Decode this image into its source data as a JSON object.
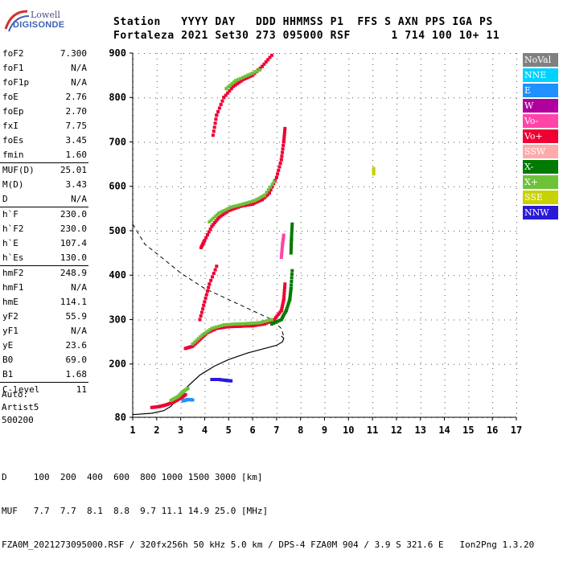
{
  "logo": {
    "line1": "Lowell",
    "line2": "DIGISONDE"
  },
  "header": {
    "line1": "Station   YYYY DAY   DDD HHMMSS P1  FFS S AXN PPS IGA PS",
    "line2": "Fortaleza 2021 Set30 273 095000 RSF      1 714 100 10+ 11"
  },
  "params": [
    {
      "label": "foF2",
      "value": "7.300"
    },
    {
      "label": "foF1",
      "value": "N/A"
    },
    {
      "label": "foF1p",
      "value": "N/A"
    },
    {
      "label": "foE",
      "value": "2.76"
    },
    {
      "label": "foEp",
      "value": "2.70"
    },
    {
      "label": "fxI",
      "value": "7.75"
    },
    {
      "label": "foEs",
      "value": "3.45"
    },
    {
      "label": "fmin",
      "value": "1.60"
    },
    {
      "label": "MUF(D)",
      "value": "25.01",
      "sep": true
    },
    {
      "label": "M(D)",
      "value": "3.43"
    },
    {
      "label": "D",
      "value": "N/A"
    },
    {
      "label": "h`F",
      "value": "230.0",
      "sep": true
    },
    {
      "label": "h`F2",
      "value": "230.0"
    },
    {
      "label": "h`E",
      "value": "107.4"
    },
    {
      "label": "h`Es",
      "value": "130.0"
    },
    {
      "label": "hmF2",
      "value": "248.9",
      "sep": true
    },
    {
      "label": "hmF1",
      "value": "N/A"
    },
    {
      "label": "hmE",
      "value": "114.1"
    },
    {
      "label": "yF2",
      "value": "55.9"
    },
    {
      "label": "yF1",
      "value": "N/A"
    },
    {
      "label": "yE",
      "value": "23.6"
    },
    {
      "label": "B0",
      "value": "69.0"
    },
    {
      "label": "B1",
      "value": "1.68"
    },
    {
      "label": "C-level",
      "value": "11",
      "sep": true
    }
  ],
  "extra": {
    "auto": "Auto:",
    "artist": "Artist5",
    "code": "500200"
  },
  "legend": [
    {
      "label": "NoVal",
      "color": "#808080"
    },
    {
      "label": "NNE",
      "color": "#00d2ff"
    },
    {
      "label": "E",
      "color": "#1e90ff"
    },
    {
      "label": "W",
      "color": "#b0009e"
    },
    {
      "label": "Vo-",
      "color": "#ff44aa"
    },
    {
      "label": "Vo+",
      "color": "#ee0033"
    },
    {
      "label": "SSW",
      "color": "#ffaaaa"
    },
    {
      "label": "X-",
      "color": "#007a00"
    },
    {
      "label": "X+",
      "color": "#6ec23a"
    },
    {
      "label": "SSE",
      "color": "#c8d200"
    },
    {
      "label": "NNW",
      "color": "#2a1ad8"
    }
  ],
  "footer": {
    "line1": "D     100  200  400  600  800 1000 1500 3000 [km]",
    "line2": "MUF   7.7  7.7  8.1  8.8  9.7 11.1 14.9 25.0 [MHz]",
    "line3": "FZA0M_2021273095000.RSF / 320fx256h 50 kHz 5.0 km / DPS-4 FZA0M 904 / 3.9 S 321.6 E   Ion2Png 1.3.20"
  },
  "chart_data": {
    "type": "scatter",
    "xlim": [
      1,
      17
    ],
    "ylim": [
      80,
      900
    ],
    "x_ticks": [
      1,
      2,
      3,
      4,
      5,
      6,
      7,
      8,
      9,
      10,
      11,
      12,
      13,
      14,
      15,
      16,
      17
    ],
    "y_ticks": [
      80,
      200,
      300,
      400,
      500,
      600,
      700,
      800,
      900
    ],
    "grid": true,
    "profile_solid": [
      [
        1.0,
        86
      ],
      [
        1.8,
        89
      ],
      [
        2.3,
        95
      ],
      [
        2.6,
        105
      ],
      [
        2.9,
        125
      ],
      [
        3.3,
        150
      ],
      [
        3.8,
        175
      ],
      [
        4.4,
        195
      ],
      [
        5.0,
        210
      ],
      [
        5.8,
        225
      ],
      [
        6.5,
        235
      ],
      [
        7.0,
        242
      ],
      [
        7.25,
        250
      ],
      [
        7.3,
        258
      ],
      [
        7.2,
        263
      ]
    ],
    "profile_dashed": [
      [
        1.0,
        515
      ],
      [
        1.5,
        470
      ],
      [
        2.2,
        440
      ],
      [
        3.0,
        405
      ],
      [
        4.0,
        370
      ],
      [
        5.0,
        345
      ],
      [
        6.0,
        320
      ],
      [
        6.8,
        300
      ],
      [
        7.2,
        280
      ],
      [
        7.3,
        262
      ]
    ],
    "echo_traces": [
      {
        "color": "#ee0033",
        "points": [
          [
            1.8,
            102
          ],
          [
            2.1,
            104
          ],
          [
            2.4,
            108
          ],
          [
            2.7,
            114
          ],
          [
            3.0,
            123
          ],
          [
            3.2,
            131
          ]
        ]
      },
      {
        "color": "#6ec23a",
        "points": [
          [
            2.6,
            118
          ],
          [
            2.9,
            127
          ],
          [
            3.1,
            138
          ],
          [
            3.3,
            145
          ]
        ]
      },
      {
        "color": "#1e90ff",
        "points": [
          [
            3.1,
            117
          ],
          [
            3.3,
            120
          ],
          [
            3.5,
            119
          ]
        ]
      },
      {
        "color": "#ee0033",
        "points": [
          [
            3.2,
            235
          ],
          [
            3.5,
            240
          ],
          [
            3.8,
            255
          ],
          [
            4.1,
            270
          ],
          [
            4.5,
            280
          ],
          [
            5.0,
            284
          ],
          [
            5.5,
            285
          ],
          [
            6.0,
            286
          ],
          [
            6.5,
            290
          ],
          [
            6.9,
            300
          ],
          [
            7.2,
            320
          ],
          [
            7.3,
            345
          ],
          [
            7.35,
            380
          ]
        ]
      },
      {
        "color": "#6ec23a",
        "points": [
          [
            3.5,
            245
          ],
          [
            3.9,
            265
          ],
          [
            4.3,
            280
          ],
          [
            4.8,
            288
          ],
          [
            5.3,
            290
          ],
          [
            5.8,
            291
          ],
          [
            6.3,
            293
          ],
          [
            6.8,
            300
          ]
        ]
      },
      {
        "color": "#007a00",
        "points": [
          [
            6.8,
            290
          ],
          [
            7.2,
            300
          ],
          [
            7.4,
            320
          ],
          [
            7.55,
            345
          ],
          [
            7.6,
            370
          ],
          [
            7.65,
            410
          ]
        ]
      },
      {
        "color": "#ff44aa",
        "points": [
          [
            7.2,
            440
          ],
          [
            7.25,
            470
          ],
          [
            7.3,
            490
          ]
        ]
      },
      {
        "color": "#007a00",
        "points": [
          [
            7.6,
            450
          ],
          [
            7.62,
            480
          ],
          [
            7.65,
            515
          ]
        ]
      },
      {
        "color": "#ee0033",
        "points": [
          [
            3.8,
            300
          ],
          [
            4.0,
            340
          ],
          [
            4.2,
            380
          ],
          [
            4.5,
            420
          ]
        ]
      },
      {
        "color": "#ee0033",
        "points": [
          [
            3.85,
            462
          ],
          [
            4.0,
            478
          ],
          [
            4.3,
            510
          ],
          [
            4.6,
            530
          ],
          [
            5.0,
            545
          ],
          [
            5.5,
            555
          ],
          [
            6.0,
            560
          ],
          [
            6.4,
            570
          ],
          [
            6.7,
            585
          ],
          [
            7.0,
            620
          ],
          [
            7.2,
            660
          ],
          [
            7.3,
            700
          ],
          [
            7.35,
            730
          ]
        ]
      },
      {
        "color": "#6ec23a",
        "points": [
          [
            4.2,
            520
          ],
          [
            4.6,
            540
          ],
          [
            5.1,
            553
          ],
          [
            5.6,
            560
          ],
          [
            6.1,
            568
          ],
          [
            6.5,
            580
          ],
          [
            6.9,
            610
          ]
        ]
      },
      {
        "color": "#ee0033",
        "points": [
          [
            4.35,
            715
          ],
          [
            4.5,
            760
          ],
          [
            4.8,
            800
          ],
          [
            5.2,
            825
          ],
          [
            5.6,
            840
          ],
          [
            6.0,
            850
          ],
          [
            6.4,
            870
          ],
          [
            6.8,
            895
          ]
        ]
      },
      {
        "color": "#6ec23a",
        "points": [
          [
            4.9,
            820
          ],
          [
            5.3,
            838
          ],
          [
            5.8,
            850
          ],
          [
            6.3,
            862
          ]
        ]
      },
      {
        "color": "#2a1ad8",
        "points": [
          [
            4.3,
            165
          ],
          [
            4.6,
            165
          ],
          [
            4.9,
            163
          ],
          [
            5.1,
            162
          ]
        ]
      },
      {
        "color": "#c8d200",
        "points": [
          [
            11.05,
            640
          ],
          [
            11.05,
            628
          ]
        ]
      }
    ]
  }
}
